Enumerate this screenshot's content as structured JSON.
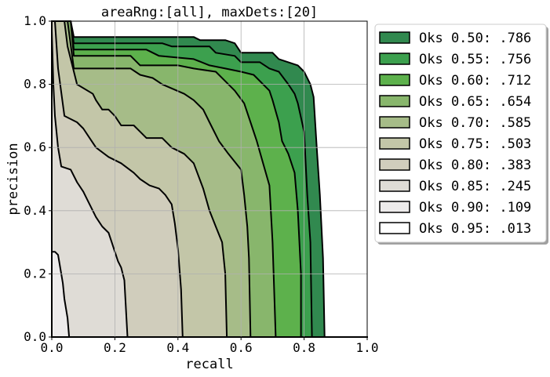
{
  "chart_data": {
    "type": "area",
    "title": "areaRng:[all], maxDets:[20]",
    "xlabel": "recall",
    "ylabel": "precision",
    "xlim": [
      0.0,
      1.0
    ],
    "ylim": [
      0.0,
      1.0
    ],
    "xticks": [
      "0.0",
      "0.2",
      "0.4",
      "0.6",
      "0.8",
      "1.0"
    ],
    "yticks": [
      "0.0",
      "0.2",
      "0.4",
      "0.6",
      "0.8",
      "1.0"
    ],
    "grid": true,
    "legend_position": "outside-right",
    "series": [
      {
        "name": "Oks 0.50: .786",
        "color": "#31894f",
        "points": [
          [
            0,
            1.0
          ],
          [
            0.06,
            1.0
          ],
          [
            0.07,
            0.95
          ],
          [
            0.45,
            0.95
          ],
          [
            0.47,
            0.94
          ],
          [
            0.55,
            0.94
          ],
          [
            0.58,
            0.93
          ],
          [
            0.6,
            0.9
          ],
          [
            0.7,
            0.9
          ],
          [
            0.72,
            0.88
          ],
          [
            0.78,
            0.86
          ],
          [
            0.8,
            0.84
          ],
          [
            0.82,
            0.8
          ],
          [
            0.83,
            0.76
          ],
          [
            0.84,
            0.6
          ],
          [
            0.85,
            0.45
          ],
          [
            0.86,
            0.25
          ],
          [
            0.865,
            0.0
          ]
        ]
      },
      {
        "name": "Oks 0.55: .756",
        "color": "#3ca04e",
        "points": [
          [
            0,
            1.0
          ],
          [
            0.06,
            1.0
          ],
          [
            0.07,
            0.93
          ],
          [
            0.35,
            0.93
          ],
          [
            0.38,
            0.92
          ],
          [
            0.5,
            0.92
          ],
          [
            0.52,
            0.9
          ],
          [
            0.58,
            0.89
          ],
          [
            0.6,
            0.87
          ],
          [
            0.66,
            0.87
          ],
          [
            0.69,
            0.85
          ],
          [
            0.72,
            0.84
          ],
          [
            0.75,
            0.8
          ],
          [
            0.77,
            0.77
          ],
          [
            0.78,
            0.74
          ],
          [
            0.8,
            0.65
          ],
          [
            0.81,
            0.45
          ],
          [
            0.82,
            0.3
          ],
          [
            0.825,
            0.0
          ]
        ]
      },
      {
        "name": "Oks 0.60: .712",
        "color": "#5db14c",
        "points": [
          [
            0,
            1.0
          ],
          [
            0.06,
            1.0
          ],
          [
            0.07,
            0.91
          ],
          [
            0.3,
            0.91
          ],
          [
            0.34,
            0.89
          ],
          [
            0.45,
            0.88
          ],
          [
            0.5,
            0.86
          ],
          [
            0.55,
            0.85
          ],
          [
            0.6,
            0.84
          ],
          [
            0.64,
            0.83
          ],
          [
            0.67,
            0.8
          ],
          [
            0.69,
            0.78
          ],
          [
            0.7,
            0.75
          ],
          [
            0.72,
            0.68
          ],
          [
            0.73,
            0.62
          ],
          [
            0.75,
            0.58
          ],
          [
            0.77,
            0.52
          ],
          [
            0.78,
            0.4
          ],
          [
            0.79,
            0.2
          ],
          [
            0.79,
            0.0
          ]
        ]
      },
      {
        "name": "Oks 0.65: .654",
        "color": "#88b66c",
        "points": [
          [
            0,
            1.0
          ],
          [
            0.06,
            1.0
          ],
          [
            0.07,
            0.89
          ],
          [
            0.25,
            0.89
          ],
          [
            0.28,
            0.86
          ],
          [
            0.4,
            0.86
          ],
          [
            0.45,
            0.85
          ],
          [
            0.52,
            0.84
          ],
          [
            0.55,
            0.81
          ],
          [
            0.58,
            0.78
          ],
          [
            0.61,
            0.74
          ],
          [
            0.63,
            0.68
          ],
          [
            0.65,
            0.62
          ],
          [
            0.67,
            0.55
          ],
          [
            0.69,
            0.48
          ],
          [
            0.7,
            0.3
          ],
          [
            0.71,
            0.0
          ]
        ]
      },
      {
        "name": "Oks 0.70: .585",
        "color": "#a6bc88",
        "points": [
          [
            0,
            1.0
          ],
          [
            0.05,
            1.0
          ],
          [
            0.07,
            0.85
          ],
          [
            0.25,
            0.85
          ],
          [
            0.28,
            0.83
          ],
          [
            0.32,
            0.82
          ],
          [
            0.35,
            0.8
          ],
          [
            0.42,
            0.77
          ],
          [
            0.45,
            0.75
          ],
          [
            0.48,
            0.72
          ],
          [
            0.5,
            0.68
          ],
          [
            0.53,
            0.62
          ],
          [
            0.56,
            0.58
          ],
          [
            0.6,
            0.53
          ],
          [
            0.61,
            0.45
          ],
          [
            0.62,
            0.35
          ],
          [
            0.625,
            0.25
          ],
          [
            0.63,
            0.0
          ]
        ]
      },
      {
        "name": "Oks 0.75: .503",
        "color": "#c3c6a8",
        "points": [
          [
            0,
            1.0
          ],
          [
            0.04,
            1.0
          ],
          [
            0.05,
            0.92
          ],
          [
            0.08,
            0.8
          ],
          [
            0.13,
            0.77
          ],
          [
            0.14,
            0.75
          ],
          [
            0.16,
            0.72
          ],
          [
            0.18,
            0.72
          ],
          [
            0.2,
            0.7
          ],
          [
            0.22,
            0.67
          ],
          [
            0.26,
            0.67
          ],
          [
            0.28,
            0.65
          ],
          [
            0.3,
            0.63
          ],
          [
            0.35,
            0.63
          ],
          [
            0.38,
            0.6
          ],
          [
            0.42,
            0.58
          ],
          [
            0.45,
            0.55
          ],
          [
            0.48,
            0.47
          ],
          [
            0.5,
            0.4
          ],
          [
            0.52,
            0.35
          ],
          [
            0.54,
            0.3
          ],
          [
            0.55,
            0.2
          ],
          [
            0.555,
            0.0
          ]
        ]
      },
      {
        "name": "Oks 0.80: .383",
        "color": "#d0cdbc",
        "points": [
          [
            0,
            1.0
          ],
          [
            0.01,
            1.0
          ],
          [
            0.02,
            0.85
          ],
          [
            0.04,
            0.7
          ],
          [
            0.08,
            0.68
          ],
          [
            0.1,
            0.66
          ],
          [
            0.12,
            0.63
          ],
          [
            0.14,
            0.6
          ],
          [
            0.18,
            0.57
          ],
          [
            0.22,
            0.55
          ],
          [
            0.26,
            0.52
          ],
          [
            0.28,
            0.5
          ],
          [
            0.31,
            0.48
          ],
          [
            0.34,
            0.47
          ],
          [
            0.36,
            0.45
          ],
          [
            0.38,
            0.42
          ],
          [
            0.39,
            0.36
          ],
          [
            0.4,
            0.28
          ],
          [
            0.41,
            0.15
          ],
          [
            0.415,
            0.0
          ]
        ]
      },
      {
        "name": "Oks 0.85: .245",
        "color": "#dfdcd6",
        "points": [
          [
            0,
            0.97
          ],
          [
            0.005,
            0.8
          ],
          [
            0.01,
            0.7
          ],
          [
            0.02,
            0.6
          ],
          [
            0.03,
            0.54
          ],
          [
            0.06,
            0.53
          ],
          [
            0.08,
            0.49
          ],
          [
            0.1,
            0.46
          ],
          [
            0.12,
            0.42
          ],
          [
            0.14,
            0.38
          ],
          [
            0.16,
            0.35
          ],
          [
            0.18,
            0.33
          ],
          [
            0.19,
            0.3
          ],
          [
            0.2,
            0.27
          ],
          [
            0.21,
            0.24
          ],
          [
            0.22,
            0.22
          ],
          [
            0.23,
            0.18
          ],
          [
            0.24,
            0.0
          ]
        ]
      },
      {
        "name": "Oks 0.90: .109",
        "color": "#edebeb",
        "points": [
          [
            0,
            0.27
          ],
          [
            0.01,
            0.27
          ],
          [
            0.02,
            0.26
          ],
          [
            0.03,
            0.2
          ],
          [
            0.035,
            0.17
          ],
          [
            0.04,
            0.12
          ],
          [
            0.05,
            0.06
          ],
          [
            0.055,
            0.0
          ]
        ]
      },
      {
        "name": "Oks 0.95: .013",
        "color": "#ffffff",
        "points": [
          [
            0,
            0.0
          ],
          [
            1.0,
            0.0
          ]
        ]
      }
    ]
  }
}
